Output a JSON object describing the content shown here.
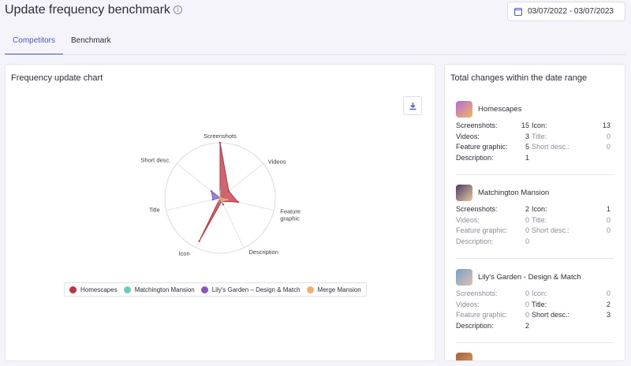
{
  "header": {
    "title": "Update frequency benchmark",
    "info_icon": "info-icon",
    "date_range": "03/07/2022 - 03/07/2023"
  },
  "tabs": [
    {
      "label": "Competitors",
      "active": true
    },
    {
      "label": "Benchmark",
      "active": false
    }
  ],
  "chart_card": {
    "title": "Frequency update chart",
    "download_icon": "download-icon"
  },
  "chart_data": {
    "type": "radar",
    "axes": [
      "Screenshots",
      "Videos",
      "Feature graphic",
      "Description",
      "Icon",
      "Title",
      "Short desc."
    ],
    "axis_label_lines": [
      [
        "Screenshots"
      ],
      [
        "Videos"
      ],
      [
        "Feature",
        "graphic"
      ],
      [
        "Description"
      ],
      [
        "Icon"
      ],
      [
        "Title"
      ],
      [
        "Short desc."
      ]
    ],
    "max": 15,
    "series": [
      {
        "name": "Homescapes",
        "color": "#c0323f",
        "values": [
          15,
          3,
          5,
          1,
          13,
          0,
          0
        ]
      },
      {
        "name": "Matchington Mansion",
        "color": "#6ccbbf",
        "values": [
          2,
          0,
          0,
          0,
          1,
          0,
          0
        ]
      },
      {
        "name": "Lily's Garden – Design & Match",
        "color": "#8a55c0",
        "values": [
          0,
          0,
          0,
          2,
          0,
          2,
          3
        ]
      },
      {
        "name": "Merge Mansion",
        "color": "#f2ae6a",
        "values": [
          0,
          0,
          2,
          1,
          0,
          0,
          0
        ]
      }
    ],
    "legend_position": "bottom"
  },
  "totals": {
    "title": "Total changes within the date range",
    "apps": [
      {
        "name": "Homescapes",
        "icon_colors": [
          "#b36bd8",
          "#f0b860"
        ],
        "left": [
          [
            "Screenshots:",
            "15"
          ],
          [
            "Videos:",
            "3"
          ],
          [
            "Feature graphic:",
            "5"
          ],
          [
            "Description:",
            "1"
          ]
        ],
        "right": [
          [
            "Icon:",
            "13"
          ],
          [
            "Title:",
            "0"
          ],
          [
            "Short desc.:",
            "0"
          ]
        ]
      },
      {
        "name": "Matchington Mansion",
        "icon_colors": [
          "#4a3a6a",
          "#e8c9a0"
        ],
        "left": [
          [
            "Screenshots:",
            "2"
          ],
          [
            "Videos:",
            "0"
          ],
          [
            "Feature graphic:",
            "0"
          ],
          [
            "Description:",
            "0"
          ]
        ],
        "right": [
          [
            "Icon:",
            "1"
          ],
          [
            "Title:",
            "0"
          ],
          [
            "Short desc.:",
            "0"
          ]
        ]
      },
      {
        "name": "Lily's Garden - Design & Match",
        "icon_colors": [
          "#7aa0c8",
          "#d9c0b0"
        ],
        "left": [
          [
            "Screenshots:",
            "0"
          ],
          [
            "Videos:",
            "0"
          ],
          [
            "Feature graphic:",
            "0"
          ],
          [
            "Description:",
            "2"
          ]
        ],
        "right": [
          [
            "Icon:",
            "0"
          ],
          [
            "Title:",
            "2"
          ],
          [
            "Short desc.:",
            "3"
          ]
        ]
      }
    ],
    "partial_app_icon_colors": [
      "#a06040",
      "#e0a060"
    ]
  }
}
